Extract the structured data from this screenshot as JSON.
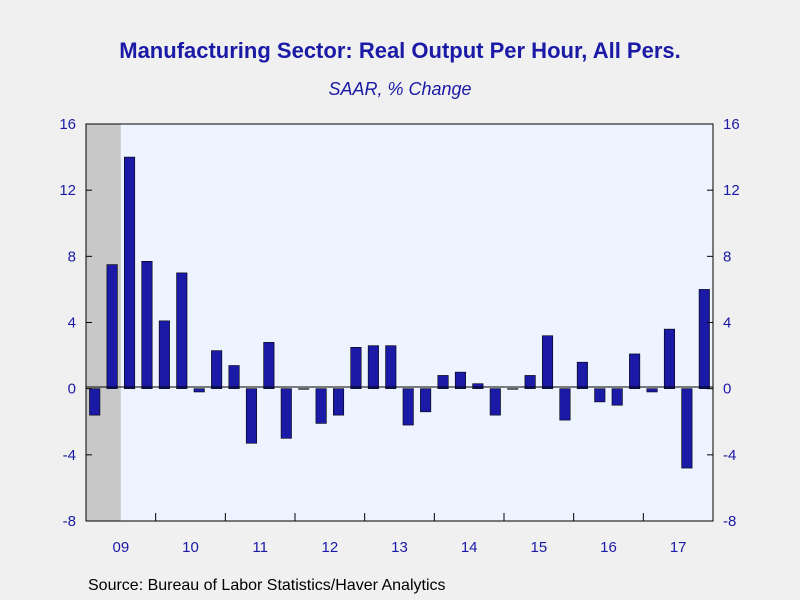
{
  "chart_data": {
    "type": "bar",
    "title": "Manufacturing Sector: Real Output Per Hour, All Pers.",
    "subtitle": "SAAR, % Change",
    "source": "Source:  Bureau of Labor Statistics/Haver Analytics",
    "ylim": [
      -8,
      16
    ],
    "yticks": [
      -8,
      -4,
      0,
      4,
      8,
      12,
      16
    ],
    "year_labels": [
      "09",
      "10",
      "11",
      "12",
      "13",
      "14",
      "15",
      "16",
      "17"
    ],
    "first_period": "2009 Q1",
    "last_period": "2017 Q4",
    "recession_shading": {
      "from": "2009 Q1",
      "to": "2009 Q2",
      "color": "#c8c8c8"
    },
    "plot_background": "#eef4ff",
    "bar_color": "#1a1aa6",
    "series": [
      {
        "values": [
          -1.6,
          7.5,
          14.0,
          7.7,
          4.1,
          7.0,
          -0.2,
          2.3,
          1.4,
          -3.3,
          2.8,
          -3.0,
          0.0,
          -2.1,
          -1.6,
          2.5,
          2.6,
          2.6,
          -2.2,
          -1.4,
          0.8,
          1.0,
          0.3,
          -1.6,
          0.0,
          0.8,
          3.2,
          -1.9,
          1.6,
          -0.8,
          -1.0,
          2.1,
          -0.2,
          3.6,
          -4.8,
          6.0
        ]
      }
    ]
  }
}
